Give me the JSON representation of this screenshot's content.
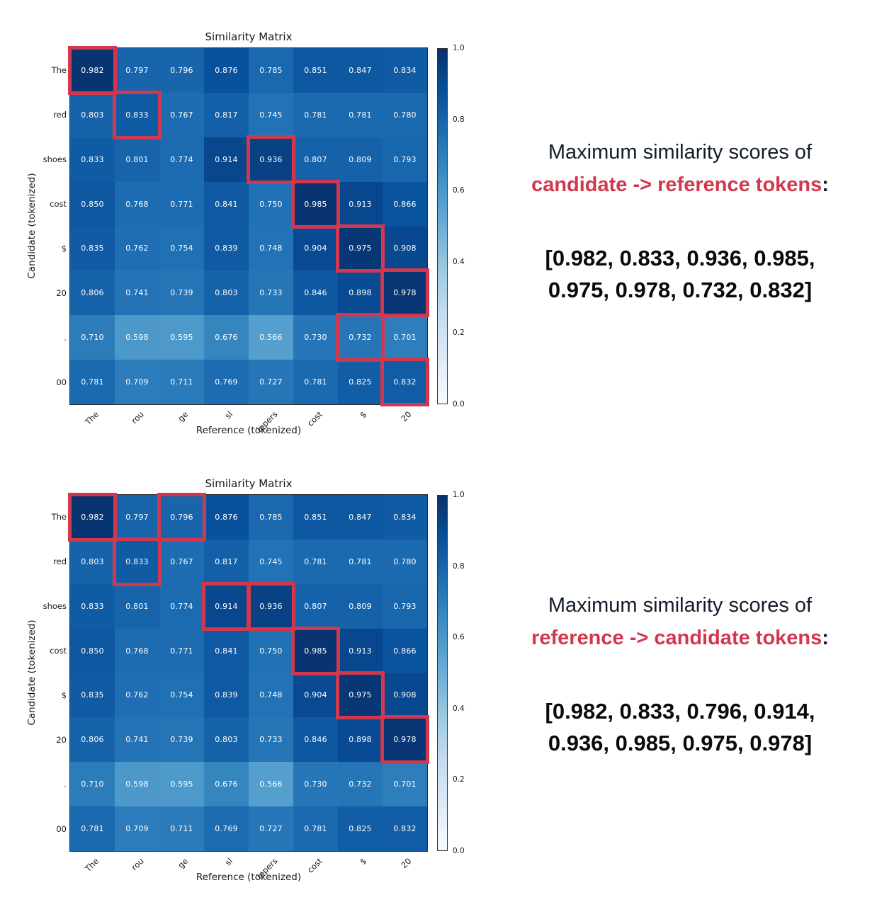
{
  "colors": {
    "accent_red": "#d2384d",
    "heading_dark": "#131c2b",
    "colormap_max": "#08306b",
    "colormap_min": "#f7fbff",
    "cell_text": "#ffffff"
  },
  "chart_data": [
    {
      "type": "heatmap",
      "title": "Similarity Matrix",
      "xlabel": "Reference (tokenized)",
      "ylabel": "Candidate (tokenized)",
      "x_labels": [
        "The",
        "rou",
        "ge",
        "sl",
        "ippers",
        "cost",
        "$",
        "20"
      ],
      "y_labels": [
        "The",
        "red",
        "shoes",
        "cost",
        "$",
        "20",
        ".",
        "00"
      ],
      "values": [
        [
          0.982,
          0.797,
          0.796,
          0.876,
          0.785,
          0.851,
          0.847,
          0.834
        ],
        [
          0.803,
          0.833,
          0.767,
          0.817,
          0.745,
          0.781,
          0.781,
          0.78
        ],
        [
          0.833,
          0.801,
          0.774,
          0.914,
          0.936,
          0.807,
          0.809,
          0.793
        ],
        [
          0.85,
          0.768,
          0.771,
          0.841,
          0.75,
          0.985,
          0.913,
          0.866
        ],
        [
          0.835,
          0.762,
          0.754,
          0.839,
          0.748,
          0.904,
          0.975,
          0.908
        ],
        [
          0.806,
          0.741,
          0.739,
          0.803,
          0.733,
          0.846,
          0.898,
          0.978
        ],
        [
          0.71,
          0.598,
          0.595,
          0.676,
          0.566,
          0.73,
          0.732,
          0.701
        ],
        [
          0.781,
          0.709,
          0.711,
          0.769,
          0.727,
          0.781,
          0.825,
          0.832
        ]
      ],
      "vmin": 0.0,
      "vmax": 1.0,
      "colormap": "Blues",
      "colorbar_ticks": [
        "1.0",
        "0.8",
        "0.6",
        "0.4",
        "0.2",
        "0.0"
      ],
      "highlighted_cells": [
        [
          0,
          0
        ],
        [
          1,
          1
        ],
        [
          2,
          4
        ],
        [
          3,
          5
        ],
        [
          4,
          6
        ],
        [
          5,
          7
        ],
        [
          6,
          6
        ],
        [
          7,
          7
        ]
      ]
    },
    {
      "type": "heatmap",
      "title": "Similarity Matrix",
      "xlabel": "Reference (tokenized)",
      "ylabel": "Candidate (tokenized)",
      "x_labels": [
        "The",
        "rou",
        "ge",
        "sl",
        "ippers",
        "cost",
        "$",
        "20"
      ],
      "y_labels": [
        "The",
        "red",
        "shoes",
        "cost",
        "$",
        "20",
        ".",
        "00"
      ],
      "values": [
        [
          0.982,
          0.797,
          0.796,
          0.876,
          0.785,
          0.851,
          0.847,
          0.834
        ],
        [
          0.803,
          0.833,
          0.767,
          0.817,
          0.745,
          0.781,
          0.781,
          0.78
        ],
        [
          0.833,
          0.801,
          0.774,
          0.914,
          0.936,
          0.807,
          0.809,
          0.793
        ],
        [
          0.85,
          0.768,
          0.771,
          0.841,
          0.75,
          0.985,
          0.913,
          0.866
        ],
        [
          0.835,
          0.762,
          0.754,
          0.839,
          0.748,
          0.904,
          0.975,
          0.908
        ],
        [
          0.806,
          0.741,
          0.739,
          0.803,
          0.733,
          0.846,
          0.898,
          0.978
        ],
        [
          0.71,
          0.598,
          0.595,
          0.676,
          0.566,
          0.73,
          0.732,
          0.701
        ],
        [
          0.781,
          0.709,
          0.711,
          0.769,
          0.727,
          0.781,
          0.825,
          0.832
        ]
      ],
      "vmin": 0.0,
      "vmax": 1.0,
      "colormap": "Blues",
      "colorbar_ticks": [
        "1.0",
        "0.8",
        "0.6",
        "0.4",
        "0.2",
        "0.0"
      ],
      "highlighted_cells": [
        [
          0,
          0
        ],
        [
          0,
          2
        ],
        [
          1,
          1
        ],
        [
          2,
          3
        ],
        [
          2,
          4
        ],
        [
          3,
          5
        ],
        [
          4,
          6
        ],
        [
          5,
          7
        ]
      ]
    }
  ],
  "annotations": [
    {
      "heading": "Maximum similarity scores of",
      "direction": "candidate -> reference tokens",
      "colon": ":",
      "scores_line1": "[0.982, 0.833, 0.936, 0.985,",
      "scores_line2": "0.975, 0.978, 0.732, 0.832]"
    },
    {
      "heading": "Maximum similarity scores of",
      "direction": "reference -> candidate tokens",
      "colon": ":",
      "scores_line1": "[0.982, 0.833, 0.796, 0.914,",
      "scores_line2": "0.936, 0.985, 0.975, 0.978]"
    }
  ]
}
